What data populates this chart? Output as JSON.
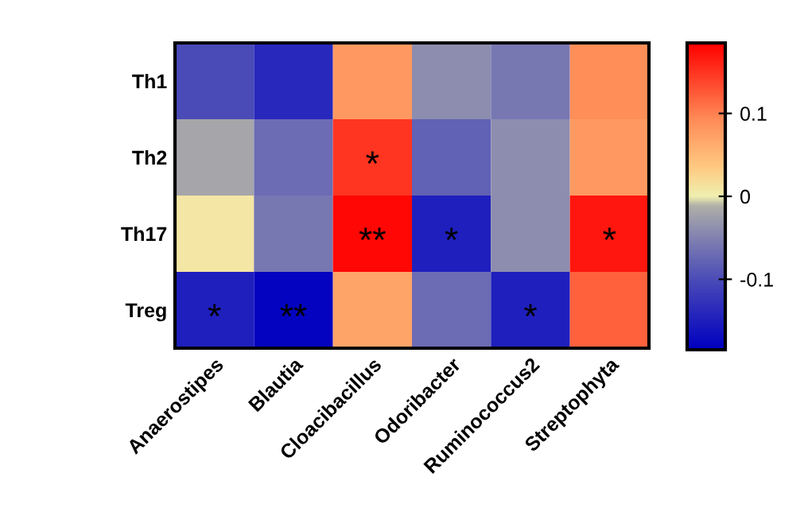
{
  "chart_data": {
    "type": "heatmap",
    "categories": [
      "Anaerostipes",
      "Blautia",
      "Cloacibacillus",
      "Odoribacter",
      "Ruminococcus2",
      "Streptophyta"
    ],
    "y_categories": [
      "Th1",
      "Th2",
      "Th17",
      "Treg"
    ],
    "cells": [
      [
        -0.1,
        -0.14,
        0.08,
        -0.04,
        -0.06,
        0.09
      ],
      [
        -0.02,
        -0.07,
        0.15,
        -0.08,
        -0.04,
        0.08
      ],
      [
        0.01,
        -0.06,
        0.18,
        -0.15,
        -0.04,
        0.17
      ],
      [
        -0.15,
        -0.18,
        0.07,
        -0.07,
        -0.15,
        0.12
      ]
    ],
    "cell_labels": [
      [
        null,
        null,
        null,
        null,
        null,
        null
      ],
      [
        null,
        null,
        "*",
        null,
        null,
        null
      ],
      [
        null,
        null,
        "**",
        "*",
        null,
        "*"
      ],
      [
        "*",
        "**",
        null,
        null,
        "*",
        null
      ]
    ],
    "clim": [
      -0.185,
      0.185
    ],
    "cticks": [
      {
        "value": -0.1,
        "label": "-0.1"
      },
      0,
      0.1
    ]
  }
}
